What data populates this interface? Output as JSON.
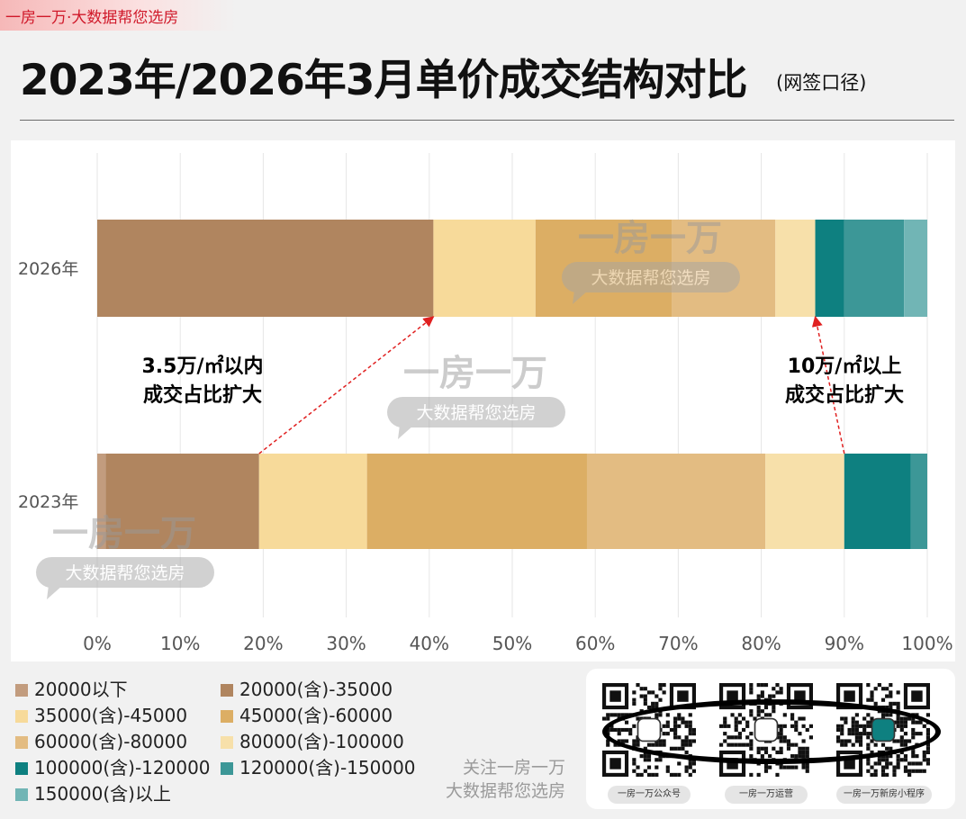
{
  "header": {
    "badge": "一房一万·大数据帮您选房",
    "title": "2023年/2026年3月单价成交结构对比",
    "subtitle": "(网签口径)"
  },
  "chart_data": {
    "type": "bar",
    "orientation": "horizontal",
    "stacked": true,
    "categories": [
      "2026年",
      "2023年"
    ],
    "x_ticks": [
      "0%",
      "10%",
      "20%",
      "30%",
      "40%",
      "50%",
      "60%",
      "70%",
      "80%",
      "90%",
      "100%"
    ],
    "xlim": [
      0,
      100
    ],
    "grid": true,
    "legend_position": "bottom-left",
    "series": [
      {
        "name": "20000以下",
        "color": "#c29c7e",
        "values": [
          0,
          1
        ]
      },
      {
        "name": "20000(含)-35000",
        "color": "#b0855f",
        "values": [
          40.5,
          18.5
        ]
      },
      {
        "name": "35000(含)-45000",
        "color": "#f7da9a",
        "values": [
          12.3,
          13.0
        ]
      },
      {
        "name": "45000(含)-60000",
        "color": "#dcae64",
        "values": [
          16.4,
          26.5
        ]
      },
      {
        "name": "60000(含)-80000",
        "color": "#e3bc82",
        "values": [
          12.5,
          21.5
        ]
      },
      {
        "name": "80000(含)-100000",
        "color": "#f7e0aa",
        "values": [
          4.8,
          9.5
        ]
      },
      {
        "name": "100000(含)-120000",
        "color": "#0e8080",
        "values": [
          3.5,
          8.0
        ]
      },
      {
        "name": "120000(含)-150000",
        "color": "#3c9797",
        "values": [
          7.2,
          2.0
        ]
      },
      {
        "name": "150000(含)以上",
        "color": "#71b5b5",
        "values": [
          2.8,
          0
        ]
      }
    ],
    "annotations": [
      {
        "text": [
          "3.5万/㎡以内",
          "成交占比扩大"
        ]
      },
      {
        "text": [
          "10万/㎡以上",
          "成交占比扩大"
        ]
      }
    ]
  },
  "watermark": {
    "brand": "一房一万",
    "tagline": "大数据帮您选房"
  },
  "footer": {
    "follow_lines": [
      "关注一房一万",
      "大数据帮您选房"
    ],
    "qr_labels": [
      "一房一万公众号",
      "一房一万运营",
      "一房一万新房小程序"
    ]
  }
}
